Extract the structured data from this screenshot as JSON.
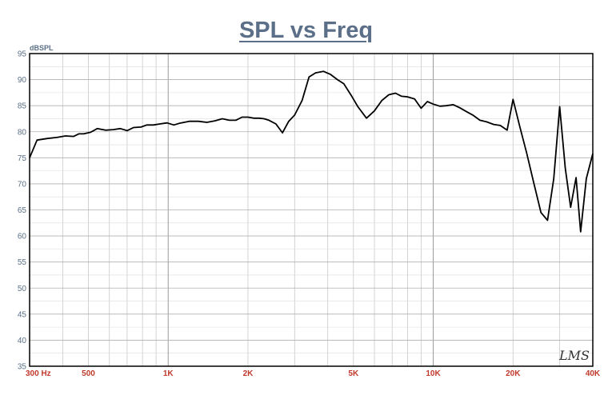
{
  "chart_data": {
    "type": "line",
    "title": "SPL vs Freq",
    "ylabel": "dBSPL",
    "xlabel": "",
    "x_scale": "log",
    "xlim": [
      300,
      40000
    ],
    "ylim": [
      35,
      95
    ],
    "grid": true,
    "yticks": [
      35,
      40,
      45,
      50,
      55,
      60,
      65,
      70,
      75,
      80,
      85,
      90,
      95
    ],
    "xtick_labels": [
      {
        "value": 300,
        "label": "300 Hz"
      },
      {
        "value": 500,
        "label": "500"
      },
      {
        "value": 1000,
        "label": "1K"
      },
      {
        "value": 2000,
        "label": "2K"
      },
      {
        "value": 5000,
        "label": "5K"
      },
      {
        "value": 10000,
        "label": "10K"
      },
      {
        "value": 20000,
        "label": "20K"
      },
      {
        "value": 40000,
        "label": "40K"
      }
    ],
    "watermark": "LMS",
    "series": [
      {
        "color": "#000000",
        "x": [
          300,
          320,
          350,
          380,
          410,
          440,
          460,
          480,
          510,
          540,
          580,
          620,
          660,
          700,
          740,
          790,
          830,
          880,
          930,
          990,
          1050,
          1100,
          1200,
          1300,
          1400,
          1500,
          1600,
          1700,
          1800,
          1900,
          2000,
          2100,
          2200,
          2300,
          2400,
          2550,
          2700,
          2850,
          3000,
          3200,
          3400,
          3600,
          3850,
          4100,
          4350,
          4600,
          4900,
          5200,
          5600,
          6000,
          6400,
          6800,
          7200,
          7600,
          8000,
          8500,
          9000,
          9500,
          10000,
          10600,
          11200,
          11900,
          12600,
          13300,
          14100,
          15000,
          15900,
          16900,
          17900,
          19000,
          20000,
          21200,
          22500,
          24000,
          25500,
          27000,
          28500,
          30000,
          31500,
          33000,
          34600,
          36000,
          37800,
          40000
        ],
        "y": [
          75,
          78.4,
          78.7,
          78.9,
          79.2,
          79.1,
          79.6,
          79.6,
          79.9,
          80.6,
          80.3,
          80.4,
          80.6,
          80.2,
          80.8,
          80.9,
          81.3,
          81.3,
          81.5,
          81.7,
          81.3,
          81.6,
          82.0,
          82.0,
          81.8,
          82.1,
          82.5,
          82.2,
          82.2,
          82.8,
          82.8,
          82.6,
          82.6,
          82.5,
          82.2,
          81.5,
          79.8,
          82.0,
          83.2,
          86.0,
          90.5,
          91.3,
          91.6,
          91.0,
          90.0,
          89.2,
          87.0,
          84.8,
          82.6,
          84.0,
          86.0,
          87.1,
          87.4,
          86.8,
          86.7,
          86.3,
          84.5,
          85.8,
          85.3,
          84.9,
          85.0,
          85.2,
          84.6,
          83.9,
          83.2,
          82.2,
          81.9,
          81.4,
          81.2,
          80.3,
          86.2,
          81.0,
          76.0,
          70.0,
          64.5,
          63.0,
          71.0,
          84.8,
          73.0,
          65.5,
          71.2,
          60.8,
          71.0,
          75.8
        ]
      }
    ]
  }
}
